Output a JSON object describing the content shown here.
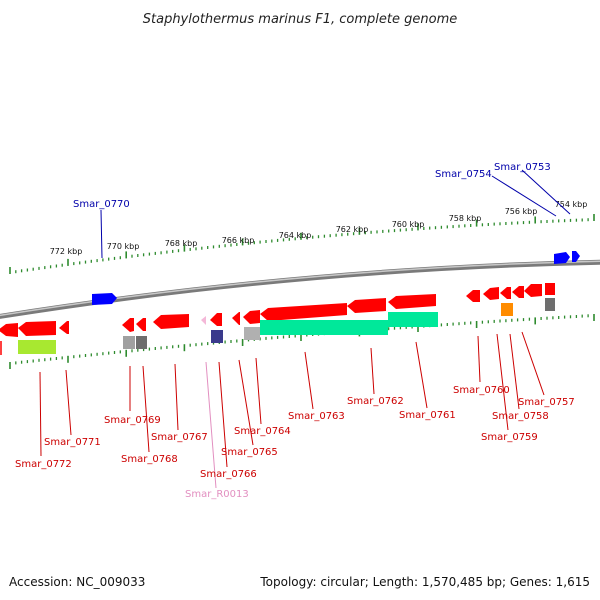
{
  "title": "Staphylothermus marinus F1, complete genome",
  "footer": {
    "accession": "Accession: NC_009033",
    "topology": "Topology: circular; Length: 1,570,485 bp; Genes: 1,615"
  },
  "scale_labels": [
    "772 kbp",
    "770 kbp",
    "768 kbp",
    "766 kbp",
    "764 kbp",
    "762 kbp",
    "760 kbp",
    "758 kbp",
    "756 kbp",
    "754 kbp"
  ],
  "genes_forward": [
    "Smar_0770",
    "Smar_0754",
    "Smar_0753"
  ],
  "genes_reverse": [
    "Smar_0772",
    "Smar_0771",
    "Smar_0769",
    "Smar_0768",
    "Smar_0767",
    "Smar_R0013",
    "Smar_0766",
    "Smar_0765",
    "Smar_0764",
    "Smar_0763",
    "Smar_0762",
    "Smar_0761",
    "Smar_0760",
    "Smar_0759",
    "Smar_0758",
    "Smar_0757"
  ],
  "colors": {
    "forward_cds": "#0000ff",
    "reverse_cds": "#ff0000",
    "rna": "#f4b8d8",
    "cog_green": "#00e89a",
    "cog_lime": "#a8e830",
    "cog_orange": "#ff8c00",
    "cog_gray": "#888888",
    "cog_navy": "#3a3a8c",
    "backbone": "#888888",
    "tick": "#2e8b2e"
  }
}
